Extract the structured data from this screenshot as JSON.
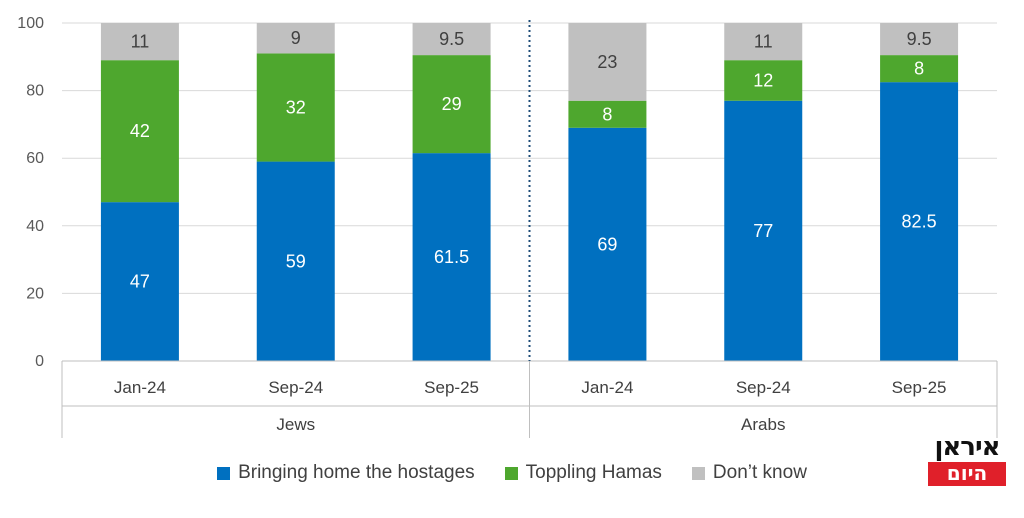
{
  "chart_data": {
    "type": "bar",
    "stacked": true,
    "ylim": [
      0,
      100
    ],
    "yticks": [
      0,
      20,
      40,
      60,
      80,
      100
    ],
    "grid": true,
    "groups": [
      {
        "name": "Jews",
        "categories": [
          "Jan-24",
          "Sep-24",
          "Sep-25"
        ]
      },
      {
        "name": "Arabs",
        "categories": [
          "Jan-24",
          "Sep-24",
          "Sep-25"
        ]
      }
    ],
    "series": [
      {
        "name": "Bringing home the hostages",
        "color": "#0070c0",
        "values": [
          47,
          59,
          61.5,
          69,
          77,
          82.5
        ],
        "labels": [
          "47",
          "59",
          "61.5",
          "69",
          "77",
          "82.5"
        ]
      },
      {
        "name": "Toppling Hamas",
        "color": "#4ea72e",
        "values": [
          42,
          32,
          29,
          8,
          12,
          8
        ],
        "labels": [
          "42",
          "32",
          "29",
          "8",
          "12",
          "8"
        ]
      },
      {
        "name": "Don’t know",
        "color": "#c0c0c0",
        "values": [
          11,
          9,
          9.5,
          23,
          11,
          9.5
        ],
        "labels": [
          "11",
          "9",
          "9.5",
          "23",
          "11",
          "9.5"
        ]
      }
    ],
    "legend_position": "bottom"
  },
  "logo": {
    "line1": "איראן",
    "line2": "היום"
  }
}
